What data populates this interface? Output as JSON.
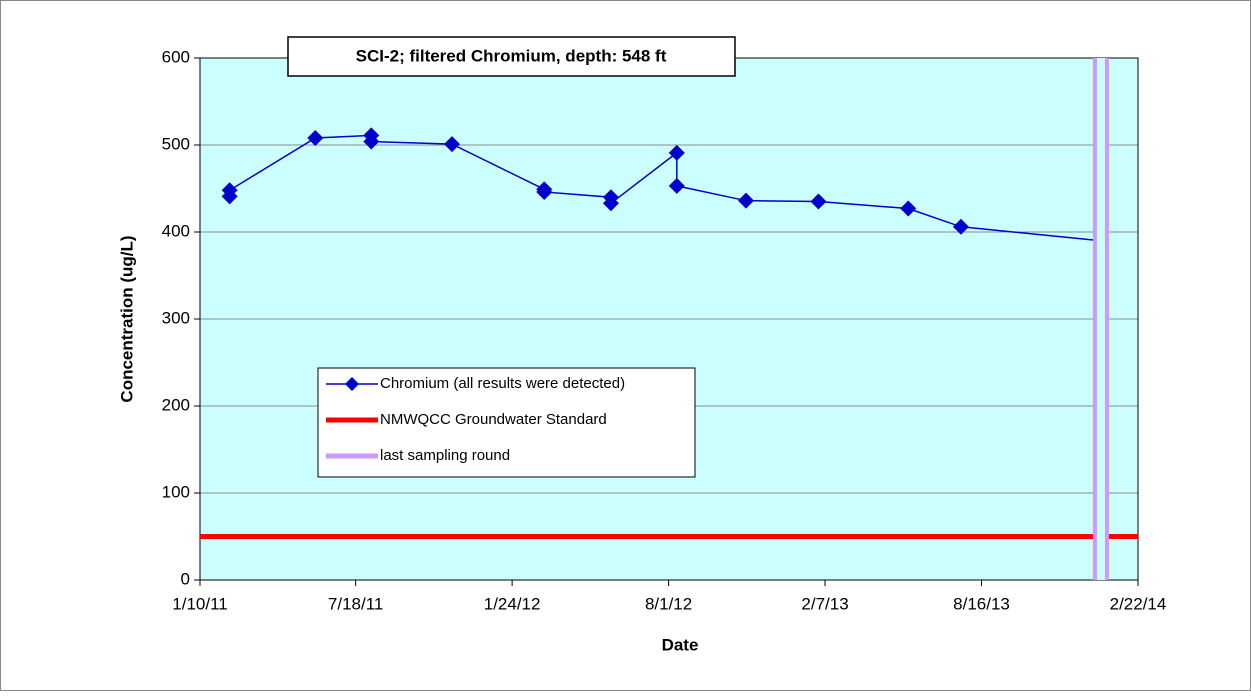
{
  "chart_data": {
    "type": "line",
    "title": "SCI-2;  filtered Chromium, depth: 548 ft",
    "x_label": "Date",
    "y_label": "Concentration (ug/L)",
    "xlim": [
      "2011-01-10",
      "2014-02-22"
    ],
    "xticks": [
      {
        "value": "2011-01-10",
        "label": "1/10/11"
      },
      {
        "value": "2011-07-18",
        "label": "7/18/11"
      },
      {
        "value": "2012-01-24",
        "label": "1/24/12"
      },
      {
        "value": "2012-08-01",
        "label": "8/1/12"
      },
      {
        "value": "2013-02-07",
        "label": "2/7/13"
      },
      {
        "value": "2013-08-16",
        "label": "8/16/13"
      },
      {
        "value": "2014-02-22",
        "label": "2/22/14"
      }
    ],
    "ylim": [
      0,
      600
    ],
    "yticks": [
      0,
      100,
      200,
      300,
      400,
      500,
      600
    ],
    "grid": true,
    "background": "#ccffff",
    "series": [
      {
        "name": "Chromium (all results were detected)",
        "color": "#0000cc",
        "marker": "diamond",
        "x": [
          "2011-02-15",
          "2011-02-15",
          "2011-05-30",
          "2011-08-06",
          "2011-08-06",
          "2011-11-12",
          "2012-03-03",
          "2012-03-03",
          "2012-05-23",
          "2012-05-23",
          "2012-08-11",
          "2012-08-11",
          "2012-11-03",
          "2013-01-30",
          "2013-05-19",
          "2013-07-22",
          "2014-01-08"
        ],
        "values": [
          441,
          448,
          508,
          511,
          504,
          501,
          449,
          446,
          440,
          433,
          491,
          453,
          436,
          435,
          427,
          406,
          390
        ]
      },
      {
        "name": "NMWQCC Groundwater Standard",
        "color": "#ff0000",
        "x": [
          "2011-01-10",
          "2014-02-22"
        ],
        "values": [
          50,
          50
        ]
      },
      {
        "name": "last sampling round",
        "color": "#cc99ff",
        "x": [
          "2014-01-08",
          "2014-01-08"
        ],
        "values": [
          0,
          600
        ]
      }
    ]
  }
}
